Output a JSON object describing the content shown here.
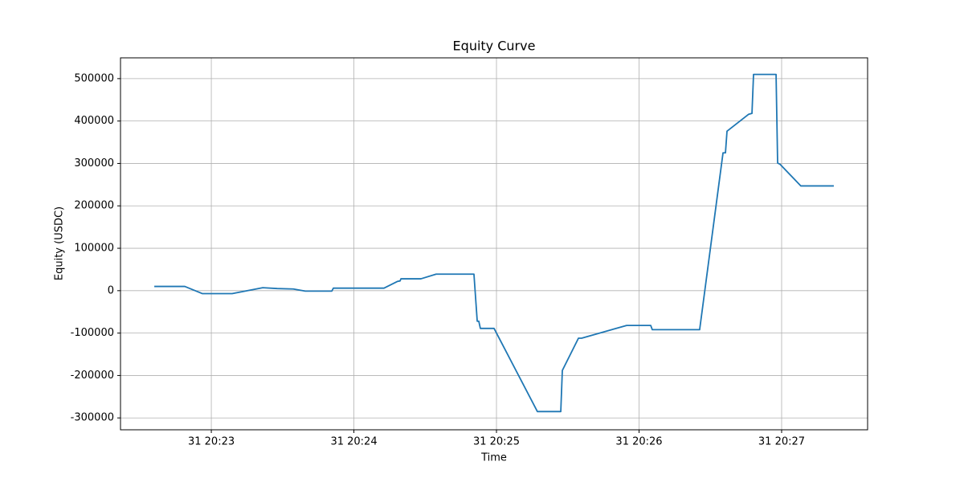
{
  "chart_data": {
    "type": "line",
    "title": "Equity Curve",
    "x_label": "Time",
    "y_label": "Equity (USDC)",
    "x": [
      22.6,
      22.814,
      22.938,
      23.146,
      23.361,
      23.462,
      23.575,
      23.659,
      23.845,
      23.856,
      24.211,
      24.307,
      24.324,
      24.33,
      24.47,
      24.577,
      24.842,
      24.865,
      24.876,
      24.887,
      24.983,
      25.287,
      25.451,
      25.462,
      25.575,
      25.597,
      25.913,
      26.082,
      26.093,
      26.425,
      26.589,
      26.606,
      26.617,
      26.769,
      26.792,
      26.803,
      26.961,
      26.972,
      26.989,
      27.135,
      27.366
    ],
    "values": [
      10000,
      10000,
      -7000,
      -7000,
      7000,
      5000,
      4000,
      -1000,
      -1000,
      6000,
      6000,
      22000,
      23000,
      28000,
      28000,
      39000,
      39000,
      -72000,
      -72000,
      -89000,
      -89000,
      -285000,
      -285000,
      -188000,
      -112000,
      -112000,
      -82000,
      -82000,
      -92000,
      -92000,
      325000,
      325000,
      376000,
      416000,
      418000,
      510000,
      510000,
      301000,
      298000,
      247000,
      247000
    ],
    "color": "#1f77b4",
    "xlim": [
      22.363,
      27.603
    ],
    "xticks": [
      {
        "value": 23,
        "label": "31 20:23"
      },
      {
        "value": 24,
        "label": "31 20:24"
      },
      {
        "value": 25,
        "label": "31 20:25"
      },
      {
        "value": 26,
        "label": "31 20:26"
      },
      {
        "value": 27,
        "label": "31 20:27"
      }
    ],
    "ylim": [
      -328000,
      549000
    ],
    "yticks": [
      -300000,
      -200000,
      -100000,
      0,
      100000,
      200000,
      300000,
      400000,
      500000
    ],
    "grid": true
  }
}
